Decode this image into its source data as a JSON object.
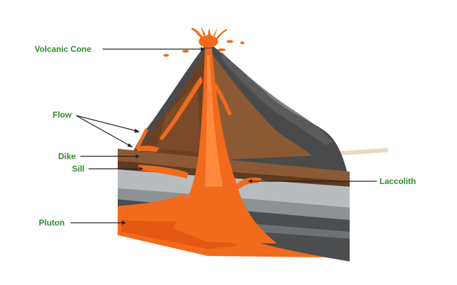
{
  "diagram": {
    "labels": {
      "volcanic_cone": "Volcanic Cone",
      "flow": "Flow",
      "dike": "Dike",
      "sill": "Sill",
      "laccolith": "Laccolith",
      "pluton": "Pluton"
    },
    "colors": {
      "label_text": "#2e8b2e",
      "leader_line": "#222222",
      "lava": "#f26a1b",
      "lava_dark": "#d9480f",
      "rock_dark": "#4a4a4a",
      "rock_mid": "#5c5c5c",
      "earth_brown": "#8b5a34",
      "earth_dark": "#6b3f22",
      "stone_light": "#b9bcbf",
      "stone_gray": "#8f9294",
      "stone_dark": "#4b4d4f",
      "ground_beige": "#ead9c2"
    }
  }
}
